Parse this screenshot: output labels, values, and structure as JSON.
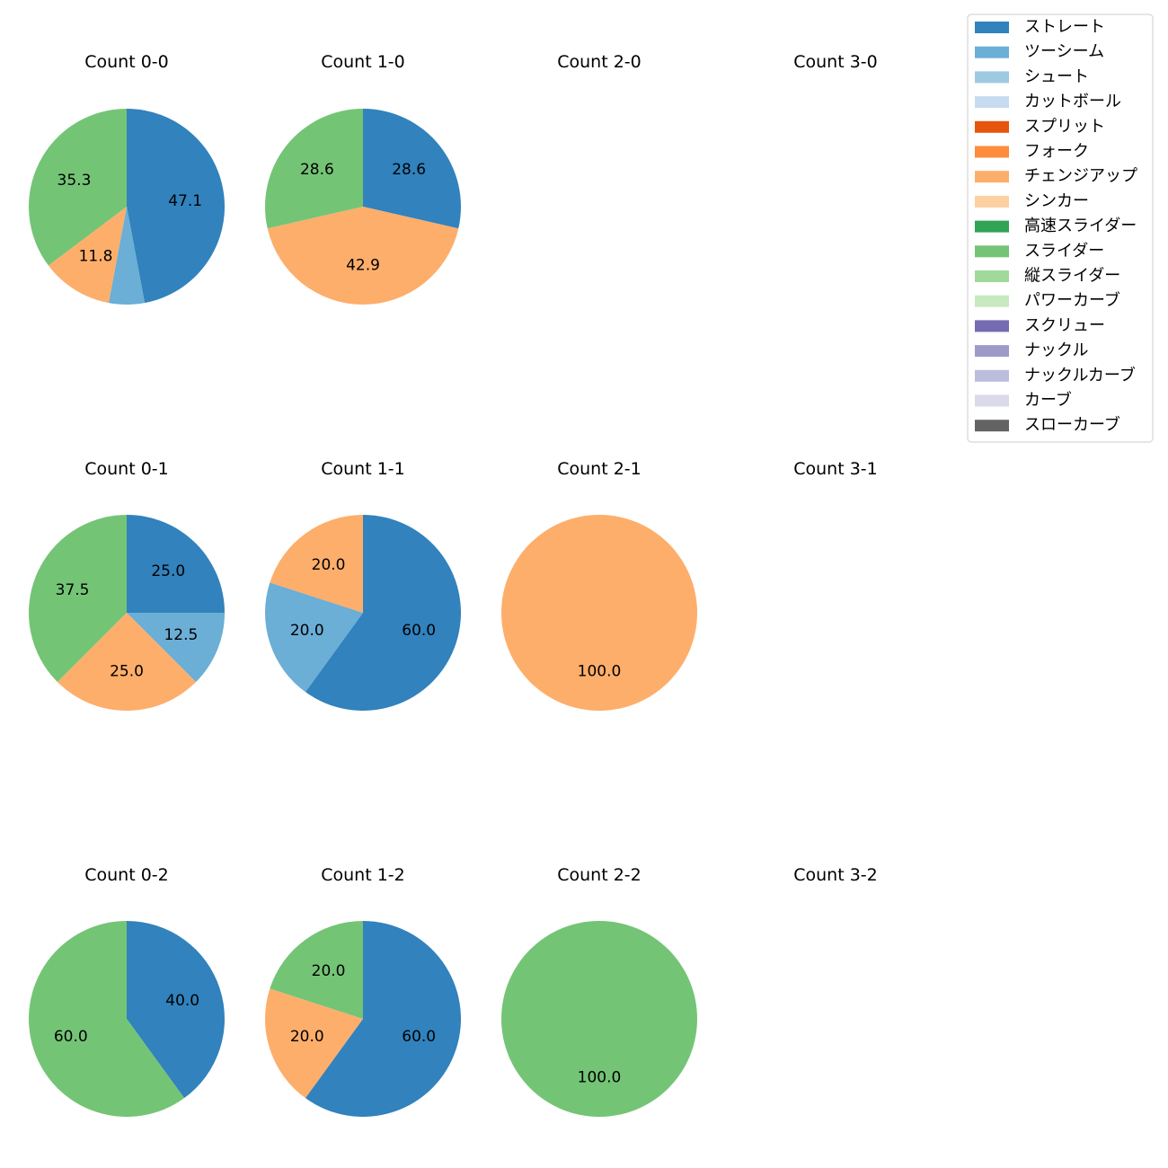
{
  "chart_data": {
    "type": "pie",
    "start_angle": "12 o'clock",
    "direction": "clockwise",
    "pitch_types": [
      {
        "name": "ストレート",
        "color": "#3182bd"
      },
      {
        "name": "ツーシーム",
        "color": "#6baed6"
      },
      {
        "name": "シュート",
        "color": "#9ecae1"
      },
      {
        "name": "カットボール",
        "color": "#c6dbef"
      },
      {
        "name": "スプリット",
        "color": "#e6550d"
      },
      {
        "name": "フォーク",
        "color": "#fd8d3c"
      },
      {
        "name": "チェンジアップ",
        "color": "#fdae6b"
      },
      {
        "name": "シンカー",
        "color": "#fdd0a2"
      },
      {
        "name": "高速スライダー",
        "color": "#31a354"
      },
      {
        "name": "スライダー",
        "color": "#74c476"
      },
      {
        "name": "縦スライダー",
        "color": "#a1d99b"
      },
      {
        "name": "パワーカーブ",
        "color": "#c7e9c0"
      },
      {
        "name": "スクリュー",
        "color": "#756bb1"
      },
      {
        "name": "ナックル",
        "color": "#9e9ac8"
      },
      {
        "name": "ナックルカーブ",
        "color": "#bcbddc"
      },
      {
        "name": "カーブ",
        "color": "#dadaeb"
      },
      {
        "name": "スローカーブ",
        "color": "#636363"
      }
    ],
    "panels": [
      {
        "title": "Count 0-0",
        "slices": [
          {
            "pitch": "ストレート",
            "value": 47.1,
            "label": "47.1"
          },
          {
            "pitch": "ツーシーム",
            "value": 5.9,
            "label": ""
          },
          {
            "pitch": "チェンジアップ",
            "value": 11.8,
            "label": "11.8"
          },
          {
            "pitch": "スライダー",
            "value": 35.3,
            "label": "35.3"
          }
        ]
      },
      {
        "title": "Count 1-0",
        "slices": [
          {
            "pitch": "ストレート",
            "value": 28.6,
            "label": "28.6"
          },
          {
            "pitch": "チェンジアップ",
            "value": 42.9,
            "label": "42.9"
          },
          {
            "pitch": "スライダー",
            "value": 28.6,
            "label": "28.6"
          }
        ]
      },
      {
        "title": "Count 2-0",
        "slices": []
      },
      {
        "title": "Count 3-0",
        "slices": []
      },
      {
        "title": "Count 0-1",
        "slices": [
          {
            "pitch": "ストレート",
            "value": 25.0,
            "label": "25.0"
          },
          {
            "pitch": "ツーシーム",
            "value": 12.5,
            "label": "12.5"
          },
          {
            "pitch": "チェンジアップ",
            "value": 25.0,
            "label": "25.0"
          },
          {
            "pitch": "スライダー",
            "value": 37.5,
            "label": "37.5"
          }
        ]
      },
      {
        "title": "Count 1-1",
        "slices": [
          {
            "pitch": "ストレート",
            "value": 60.0,
            "label": "60.0"
          },
          {
            "pitch": "ツーシーム",
            "value": 20.0,
            "label": "20.0"
          },
          {
            "pitch": "チェンジアップ",
            "value": 20.0,
            "label": "20.0"
          }
        ]
      },
      {
        "title": "Count 2-1",
        "slices": [
          {
            "pitch": "チェンジアップ",
            "value": 100.0,
            "label": "100.0"
          }
        ]
      },
      {
        "title": "Count 3-1",
        "slices": []
      },
      {
        "title": "Count 0-2",
        "slices": [
          {
            "pitch": "ストレート",
            "value": 40.0,
            "label": "40.0"
          },
          {
            "pitch": "スライダー",
            "value": 60.0,
            "label": "60.0"
          }
        ]
      },
      {
        "title": "Count 1-2",
        "slices": [
          {
            "pitch": "ストレート",
            "value": 60.0,
            "label": "60.0"
          },
          {
            "pitch": "チェンジアップ",
            "value": 20.0,
            "label": "20.0"
          },
          {
            "pitch": "スライダー",
            "value": 20.0,
            "label": "20.0"
          }
        ]
      },
      {
        "title": "Count 2-2",
        "slices": [
          {
            "pitch": "スライダー",
            "value": 100.0,
            "label": "100.0"
          }
        ]
      },
      {
        "title": "Count 3-2",
        "slices": []
      }
    ]
  }
}
